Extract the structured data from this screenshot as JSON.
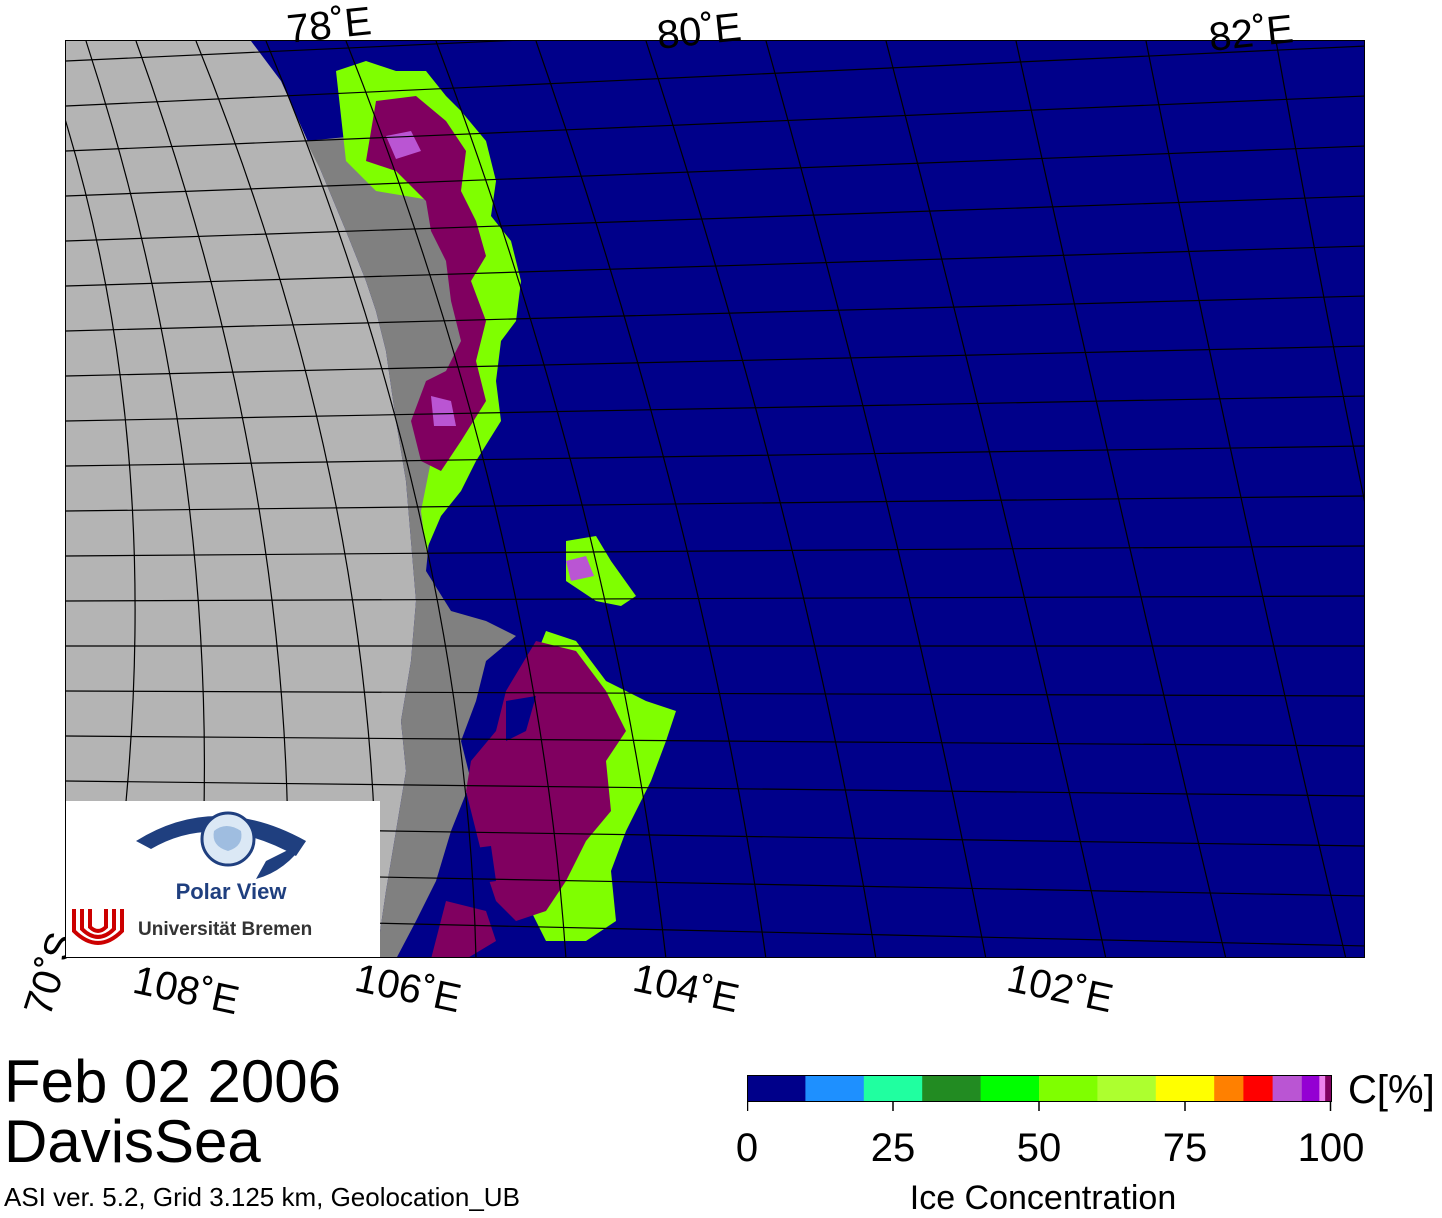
{
  "map": {
    "region": "DavisSea",
    "date": "Feb 02 2006",
    "top_longitude_labels": [
      "78˚E",
      "80˚E",
      "82˚E"
    ],
    "bottom_longitude_labels": [
      "108˚E",
      "106˚E",
      "104˚E",
      "102˚E"
    ],
    "latitude_labels": [
      "70˚S"
    ],
    "colors": {
      "open_water": "#00008a",
      "land_ice_sheet": "#b4b4b4",
      "ice_shelf": "#808080",
      "high_concentration_ice": "#800060",
      "grid_line": "#000000"
    }
  },
  "info_line": "ASI ver. 5.2,  Grid 3.125 km, Geolocation_UB",
  "logo": {
    "title": "Polar View",
    "institution": "Universität Bremen",
    "eye_icon": "eye-globe-icon",
    "uni_icon": "bremen-u-icon",
    "colors": {
      "primary": "#1f3f7f",
      "accent": "#cc0000"
    }
  },
  "colorbar": {
    "title": "Ice Concentration",
    "unit": "C[%]",
    "ticks": [
      "0",
      "25",
      "50",
      "75",
      "100"
    ],
    "bins": [
      {
        "from": 0,
        "to": 10,
        "color": "#00008a"
      },
      {
        "from": 10,
        "to": 20,
        "color": "#1e90ff"
      },
      {
        "from": 20,
        "to": 30,
        "color": "#20ffa0"
      },
      {
        "from": 30,
        "to": 40,
        "color": "#228b22"
      },
      {
        "from": 40,
        "to": 50,
        "color": "#00ff00"
      },
      {
        "from": 50,
        "to": 60,
        "color": "#7fff00"
      },
      {
        "from": 60,
        "to": 70,
        "color": "#adff2f"
      },
      {
        "from": 70,
        "to": 80,
        "color": "#ffff00"
      },
      {
        "from": 80,
        "to": 85,
        "color": "#ff8000"
      },
      {
        "from": 85,
        "to": 90,
        "color": "#ff0000"
      },
      {
        "from": 90,
        "to": 95,
        "color": "#ba55d3"
      },
      {
        "from": 95,
        "to": 98,
        "color": "#9400d3"
      },
      {
        "from": 98,
        "to": 99,
        "color": "#ee82ee"
      },
      {
        "from": 99,
        "to": 100,
        "color": "#800060"
      }
    ]
  }
}
